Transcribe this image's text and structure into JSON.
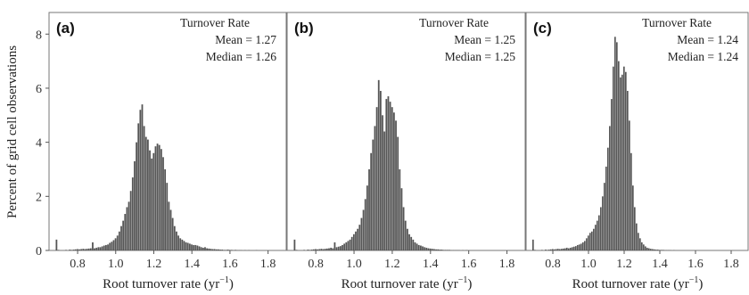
{
  "chart_data": {
    "type": "bar",
    "ylabel": "Percent of grid cell observations",
    "xlabel_main": "Root turnover rate (yr",
    "xlabel_sup": "−1",
    "xlabel_close": ")",
    "xlim": [
      0.65,
      1.9
    ],
    "ylim": [
      0,
      8.8
    ],
    "x_ticks": [
      0.8,
      1.0,
      1.2,
      1.4,
      1.6,
      1.8
    ],
    "x_tick_labels": [
      "0.8",
      "1.0",
      "1.2",
      "1.4",
      "1.6",
      "1.8"
    ],
    "y_ticks": [
      0,
      2,
      4,
      6,
      8
    ],
    "y_tick_labels": [
      "0",
      "2",
      "4",
      "6",
      "8"
    ],
    "bar_color": "#555555",
    "panels": [
      {
        "letter": "(a)",
        "stat_title": "Turnover Rate",
        "mean_text": "Mean = 1.27",
        "median_text": "Median = 1.26",
        "bin_width": 0.01,
        "x": [
          0.69,
          0.7,
          0.71,
          0.72,
          0.73,
          0.74,
          0.75,
          0.76,
          0.77,
          0.78,
          0.79,
          0.8,
          0.81,
          0.82,
          0.83,
          0.84,
          0.85,
          0.86,
          0.87,
          0.88,
          0.89,
          0.9,
          0.91,
          0.92,
          0.93,
          0.94,
          0.95,
          0.96,
          0.97,
          0.98,
          0.99,
          1.0,
          1.01,
          1.02,
          1.03,
          1.04,
          1.05,
          1.06,
          1.07,
          1.08,
          1.09,
          1.1,
          1.11,
          1.12,
          1.13,
          1.14,
          1.15,
          1.16,
          1.17,
          1.18,
          1.19,
          1.2,
          1.21,
          1.22,
          1.23,
          1.24,
          1.25,
          1.26,
          1.27,
          1.28,
          1.29,
          1.3,
          1.31,
          1.32,
          1.33,
          1.34,
          1.35,
          1.36,
          1.37,
          1.38,
          1.39,
          1.4,
          1.41,
          1.42,
          1.43,
          1.44,
          1.45,
          1.46,
          1.47,
          1.48,
          1.49,
          1.5,
          1.51,
          1.52,
          1.53,
          1.54,
          1.55,
          1.56,
          1.57,
          1.58,
          1.59,
          1.6,
          1.61,
          1.62,
          1.63,
          1.64,
          1.65,
          1.66,
          1.67,
          1.68,
          1.69,
          1.7,
          1.71,
          1.72,
          1.73,
          1.74,
          1.75,
          1.76,
          1.77,
          1.78,
          1.79,
          1.8,
          1.81,
          1.82
        ],
        "values": [
          0.4,
          0.02,
          0.0,
          0.0,
          0.0,
          0.02,
          0.0,
          0.03,
          0.02,
          0.03,
          0.04,
          0.05,
          0.04,
          0.05,
          0.06,
          0.05,
          0.06,
          0.07,
          0.08,
          0.3,
          0.08,
          0.1,
          0.12,
          0.12,
          0.15,
          0.18,
          0.2,
          0.22,
          0.28,
          0.32,
          0.38,
          0.45,
          0.55,
          0.7,
          0.9,
          1.1,
          1.35,
          1.6,
          1.8,
          2.2,
          2.7,
          3.3,
          4.0,
          4.7,
          5.2,
          5.4,
          4.6,
          4.2,
          4.1,
          3.7,
          3.4,
          3.6,
          3.85,
          3.95,
          3.9,
          3.75,
          3.45,
          3.0,
          2.5,
          1.8,
          1.5,
          1.2,
          0.9,
          0.7,
          0.55,
          0.45,
          0.4,
          0.35,
          0.3,
          0.28,
          0.25,
          0.22,
          0.2,
          0.2,
          0.18,
          0.15,
          0.12,
          0.1,
          0.12,
          0.08,
          0.07,
          0.06,
          0.05,
          0.05,
          0.04,
          0.04,
          0.03,
          0.03,
          0.02,
          0.02,
          0.03,
          0.02,
          0.02,
          0.01,
          0.02,
          0.01,
          0.01,
          0.01,
          0.0,
          0.01,
          0.0,
          0.01,
          0.0,
          0.0,
          0.0,
          0.01,
          0.0,
          0.0,
          0.0,
          0.0,
          0.0,
          0.0,
          0.0,
          0.0
        ]
      },
      {
        "letter": "(b)",
        "stat_title": "Turnover Rate",
        "mean_text": "Mean = 1.25",
        "median_text": "Median = 1.25",
        "bin_width": 0.01,
        "x": [
          0.69,
          0.7,
          0.71,
          0.72,
          0.73,
          0.74,
          0.75,
          0.76,
          0.77,
          0.78,
          0.79,
          0.8,
          0.81,
          0.82,
          0.83,
          0.84,
          0.85,
          0.86,
          0.87,
          0.88,
          0.89,
          0.9,
          0.91,
          0.92,
          0.93,
          0.94,
          0.95,
          0.96,
          0.97,
          0.98,
          0.99,
          1.0,
          1.01,
          1.02,
          1.03,
          1.04,
          1.05,
          1.06,
          1.07,
          1.08,
          1.09,
          1.1,
          1.11,
          1.12,
          1.13,
          1.14,
          1.15,
          1.16,
          1.17,
          1.18,
          1.19,
          1.2,
          1.21,
          1.22,
          1.23,
          1.24,
          1.25,
          1.26,
          1.27,
          1.28,
          1.29,
          1.3,
          1.31,
          1.32,
          1.33,
          1.34,
          1.35,
          1.36,
          1.37,
          1.38,
          1.39,
          1.4,
          1.41,
          1.42,
          1.43,
          1.44,
          1.45,
          1.46,
          1.47,
          1.48,
          1.49,
          1.5,
          1.51,
          1.52,
          1.53,
          1.54,
          1.55,
          1.56,
          1.57,
          1.58,
          1.59,
          1.6,
          1.61,
          1.62,
          1.63,
          1.64,
          1.65,
          1.66,
          1.67,
          1.68,
          1.69,
          1.7,
          1.71,
          1.72,
          1.73,
          1.74,
          1.75,
          1.76,
          1.77,
          1.78,
          1.79,
          1.8
        ],
        "values": [
          0.4,
          0.02,
          0.0,
          0.0,
          0.0,
          0.02,
          0.0,
          0.03,
          0.02,
          0.03,
          0.04,
          0.05,
          0.04,
          0.05,
          0.06,
          0.05,
          0.06,
          0.07,
          0.08,
          0.1,
          0.08,
          0.3,
          0.12,
          0.14,
          0.16,
          0.2,
          0.25,
          0.3,
          0.35,
          0.4,
          0.5,
          0.6,
          0.7,
          0.8,
          0.95,
          1.2,
          1.5,
          1.9,
          2.4,
          3.0,
          3.6,
          4.1,
          4.6,
          5.3,
          6.3,
          5.9,
          5.0,
          4.4,
          5.6,
          5.7,
          5.5,
          5.3,
          5.1,
          4.8,
          4.2,
          3.0,
          2.3,
          1.6,
          1.1,
          0.8,
          0.6,
          0.5,
          0.4,
          0.3,
          0.25,
          0.2,
          0.18,
          0.15,
          0.12,
          0.1,
          0.08,
          0.07,
          0.06,
          0.05,
          0.04,
          0.04,
          0.03,
          0.03,
          0.02,
          0.02,
          0.02,
          0.02,
          0.01,
          0.01,
          0.01,
          0.01,
          0.01,
          0.0,
          0.01,
          0.0,
          0.01,
          0.0,
          0.0,
          0.0,
          0.0,
          0.0,
          0.0,
          0.0,
          0.0,
          0.0,
          0.0,
          0.0,
          0.0,
          0.0,
          0.0,
          0.0,
          0.0,
          0.0,
          0.0,
          0.0,
          0.0,
          0.0
        ]
      },
      {
        "letter": "(c)",
        "stat_title": "Turnover Rate",
        "mean_text": "Mean = 1.24",
        "median_text": "Median = 1.24",
        "bin_width": 0.01,
        "x": [
          0.69,
          0.7,
          0.71,
          0.72,
          0.73,
          0.74,
          0.75,
          0.76,
          0.77,
          0.78,
          0.79,
          0.8,
          0.81,
          0.82,
          0.83,
          0.84,
          0.85,
          0.86,
          0.87,
          0.88,
          0.89,
          0.9,
          0.91,
          0.92,
          0.93,
          0.94,
          0.95,
          0.96,
          0.97,
          0.98,
          0.99,
          1.0,
          1.01,
          1.02,
          1.03,
          1.04,
          1.05,
          1.06,
          1.07,
          1.08,
          1.09,
          1.1,
          1.11,
          1.12,
          1.13,
          1.14,
          1.15,
          1.16,
          1.17,
          1.18,
          1.19,
          1.2,
          1.21,
          1.22,
          1.23,
          1.24,
          1.25,
          1.26,
          1.27,
          1.28,
          1.29,
          1.3,
          1.31,
          1.32,
          1.33,
          1.34,
          1.35,
          1.36,
          1.37,
          1.38,
          1.39,
          1.4,
          1.41,
          1.42,
          1.43,
          1.44,
          1.45,
          1.46,
          1.47,
          1.48,
          1.49,
          1.5,
          1.51,
          1.52,
          1.53,
          1.54,
          1.55,
          1.56,
          1.57,
          1.58,
          1.59,
          1.6,
          1.61,
          1.62,
          1.63,
          1.64,
          1.65,
          1.66,
          1.67,
          1.68,
          1.69,
          1.7,
          1.71,
          1.72,
          1.73,
          1.74,
          1.75,
          1.76,
          1.77,
          1.78,
          1.79,
          1.8
        ],
        "values": [
          0.4,
          0.02,
          0.0,
          0.0,
          0.0,
          0.02,
          0.0,
          0.03,
          0.02,
          0.03,
          0.04,
          0.05,
          0.04,
          0.05,
          0.06,
          0.05,
          0.06,
          0.07,
          0.08,
          0.1,
          0.08,
          0.1,
          0.12,
          0.14,
          0.16,
          0.2,
          0.22,
          0.25,
          0.3,
          0.35,
          0.45,
          0.55,
          0.65,
          0.7,
          0.8,
          0.95,
          1.1,
          1.3,
          1.6,
          2.0,
          2.5,
          3.1,
          3.8,
          4.6,
          5.6,
          6.8,
          7.9,
          7.7,
          7.0,
          6.4,
          6.5,
          6.8,
          6.6,
          5.9,
          4.8,
          3.6,
          2.4,
          1.6,
          1.0,
          0.65,
          0.45,
          0.3,
          0.22,
          0.15,
          0.1,
          0.08,
          0.06,
          0.05,
          0.04,
          0.03,
          0.03,
          0.02,
          0.02,
          0.02,
          0.01,
          0.01,
          0.01,
          0.01,
          0.0,
          0.01,
          0.0,
          0.0,
          0.0,
          0.0,
          0.0,
          0.0,
          0.0,
          0.0,
          0.0,
          0.0,
          0.0,
          0.0,
          0.0,
          0.0,
          0.0,
          0.0,
          0.0,
          0.0,
          0.0,
          0.0,
          0.0,
          0.0,
          0.0,
          0.0,
          0.0,
          0.0,
          0.0,
          0.0,
          0.0,
          0.0,
          0.0,
          0.0
        ]
      }
    ]
  }
}
